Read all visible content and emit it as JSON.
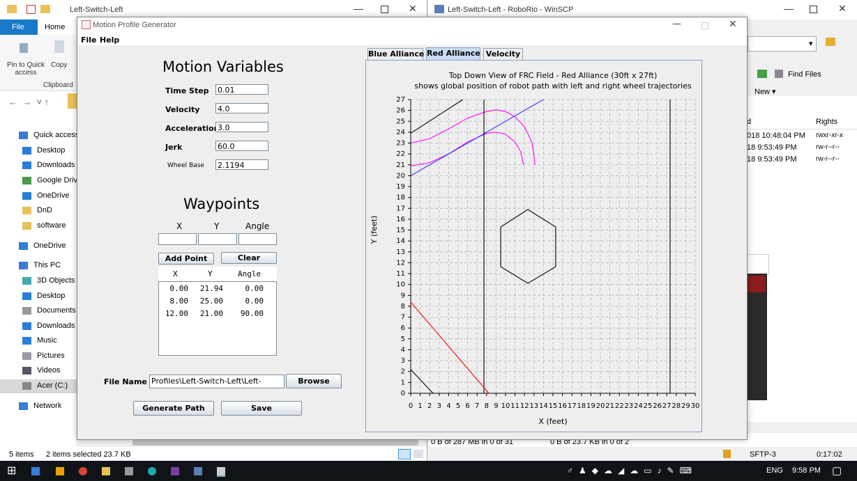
{
  "explorer": {
    "title": "Left-Switch-Left",
    "tabs": [
      "File",
      "Home"
    ],
    "ribbon": {
      "pin": "Pin to Quick access",
      "copy": "Copy",
      "group": "Clipboard"
    },
    "nav": [
      "Quick access",
      "Desktop",
      "Downloads",
      "Google Drive",
      "OneDrive",
      "DnD",
      "software",
      "OneDrive",
      "This PC",
      "3D Objects",
      "Desktop",
      "Documents",
      "Downloads",
      "Music",
      "Pictures",
      "Videos",
      "Acer (C:)",
      "Network"
    ],
    "status": {
      "items": "5 items",
      "selected": "2 items selected  23.7 KB"
    }
  },
  "winscp": {
    "title": "Left-Switch-Left - RoboRio - WinSCP",
    "find_files": "Find Files",
    "new": "New ▾",
    "columns": [
      "d",
      "Rights"
    ],
    "rows": [
      [
        "018 10:48:04 PM",
        "rwxr-xr-x"
      ],
      [
        "18 9:53:49 PM",
        "rw-r--r--"
      ],
      [
        "18 9:53:49 PM",
        "rw-r--r--"
      ]
    ],
    "status": [
      "0 B of 287 MB in 0 of 31",
      "0 B of 23.7 KB in 0 of 2"
    ],
    "protocol": "SFTP-3",
    "time": "0:17:02"
  },
  "taskbar": {
    "language": "ENG",
    "clock": "9:58 PM"
  },
  "app": {
    "title": "Motion Profile Generator",
    "menu": [
      "File",
      "Help"
    ],
    "motion_heading": "Motion Variables",
    "variables": [
      {
        "label": "Time Step",
        "value": "0.01"
      },
      {
        "label": "Velocity",
        "value": "4.0"
      },
      {
        "label": "Acceleration",
        "value": "3.0"
      },
      {
        "label": "Jerk",
        "value": "60.0"
      },
      {
        "label": "Wheel Base",
        "value": "2.1194"
      }
    ],
    "waypoints_heading": "Waypoints",
    "entry_headers": [
      "X",
      "Y",
      "Angle"
    ],
    "buttons": {
      "add": "Add Point",
      "clear": "Clear",
      "browse": "Browse",
      "generate": "Generate Path",
      "save": "Save"
    },
    "table": {
      "headers": [
        "X",
        "Y",
        "Angle"
      ],
      "rows": [
        [
          "0.00",
          "21.94",
          "0.00"
        ],
        [
          "8.00",
          "25.00",
          "0.00"
        ],
        [
          "12.00",
          "21.00",
          "90.00"
        ]
      ]
    },
    "file_label": "File Name",
    "file_value": "Profiles\\Left-Switch-Left\\Left-Switch-Left",
    "tabs": [
      "Blue Alliance",
      "Red Alliance",
      "Velocity"
    ],
    "selected_tab": 1,
    "plot": {
      "type": "line",
      "title": [
        "Top Down View of FRC Field - Red Alliance (30ft x 27ft)",
        "shows global position of robot path with left and right wheel trajectories"
      ],
      "xlabel": "X (feet)",
      "ylabel": "Y (feet)",
      "xlim": [
        0,
        30
      ],
      "ylim": [
        0,
        27
      ],
      "xticks": [
        0,
        1,
        2,
        3,
        4,
        5,
        6,
        7,
        8,
        9,
        10,
        11,
        12,
        13,
        14,
        15,
        16,
        17,
        18,
        19,
        20,
        21,
        22,
        23,
        24,
        25,
        26,
        27,
        28,
        29,
        30
      ],
      "yticks": [
        0,
        1,
        2,
        3,
        4,
        5,
        6,
        7,
        8,
        9,
        10,
        11,
        12,
        13,
        14,
        15,
        16,
        17,
        18,
        19,
        20,
        21,
        22,
        23,
        24,
        25,
        26,
        27
      ],
      "grid": true,
      "series": [
        {
          "color": "#ff00ff",
          "x": [
            0,
            2,
            4,
            6,
            8,
            9,
            10,
            11,
            12,
            12.8,
            13,
            13.1
          ],
          "y": [
            23,
            23.4,
            24.3,
            25.3,
            25.9,
            26.05,
            25.9,
            25.4,
            24.5,
            23,
            21.8,
            21
          ]
        },
        {
          "color": "#ff00ff",
          "x": [
            0,
            2,
            4,
            6,
            8,
            9,
            10,
            11,
            11.6,
            11.9
          ],
          "y": [
            20.9,
            21.2,
            22,
            23.1,
            23.9,
            24,
            23.8,
            23.1,
            22.2,
            21
          ]
        },
        {
          "color": "#3333ff",
          "x": [
            0,
            14
          ],
          "y": [
            20,
            27
          ]
        },
        {
          "color": "#000000",
          "x": [
            0,
            5.5
          ],
          "y": [
            23.9,
            27
          ]
        },
        {
          "color": "#000000",
          "x": [
            7.72,
            7.72
          ],
          "y": [
            0,
            27
          ]
        },
        {
          "color": "#000000",
          "x": [
            27.35,
            27.35
          ],
          "y": [
            0,
            27
          ]
        },
        {
          "color": "#ff0000",
          "x": [
            0,
            8.24
          ],
          "y": [
            8.38,
            0
          ]
        },
        {
          "color": "#000000",
          "x": [
            0,
            2.35
          ],
          "y": [
            2.18,
            0
          ]
        },
        {
          "color": "#000000",
          "x": [
            12.35,
            15.29,
            15.29,
            12.35,
            9.49,
            9.49,
            12.35
          ],
          "y": [
            16.89,
            15.29,
            11.64,
            10.11,
            11.64,
            15.29,
            16.89
          ]
        }
      ]
    }
  }
}
